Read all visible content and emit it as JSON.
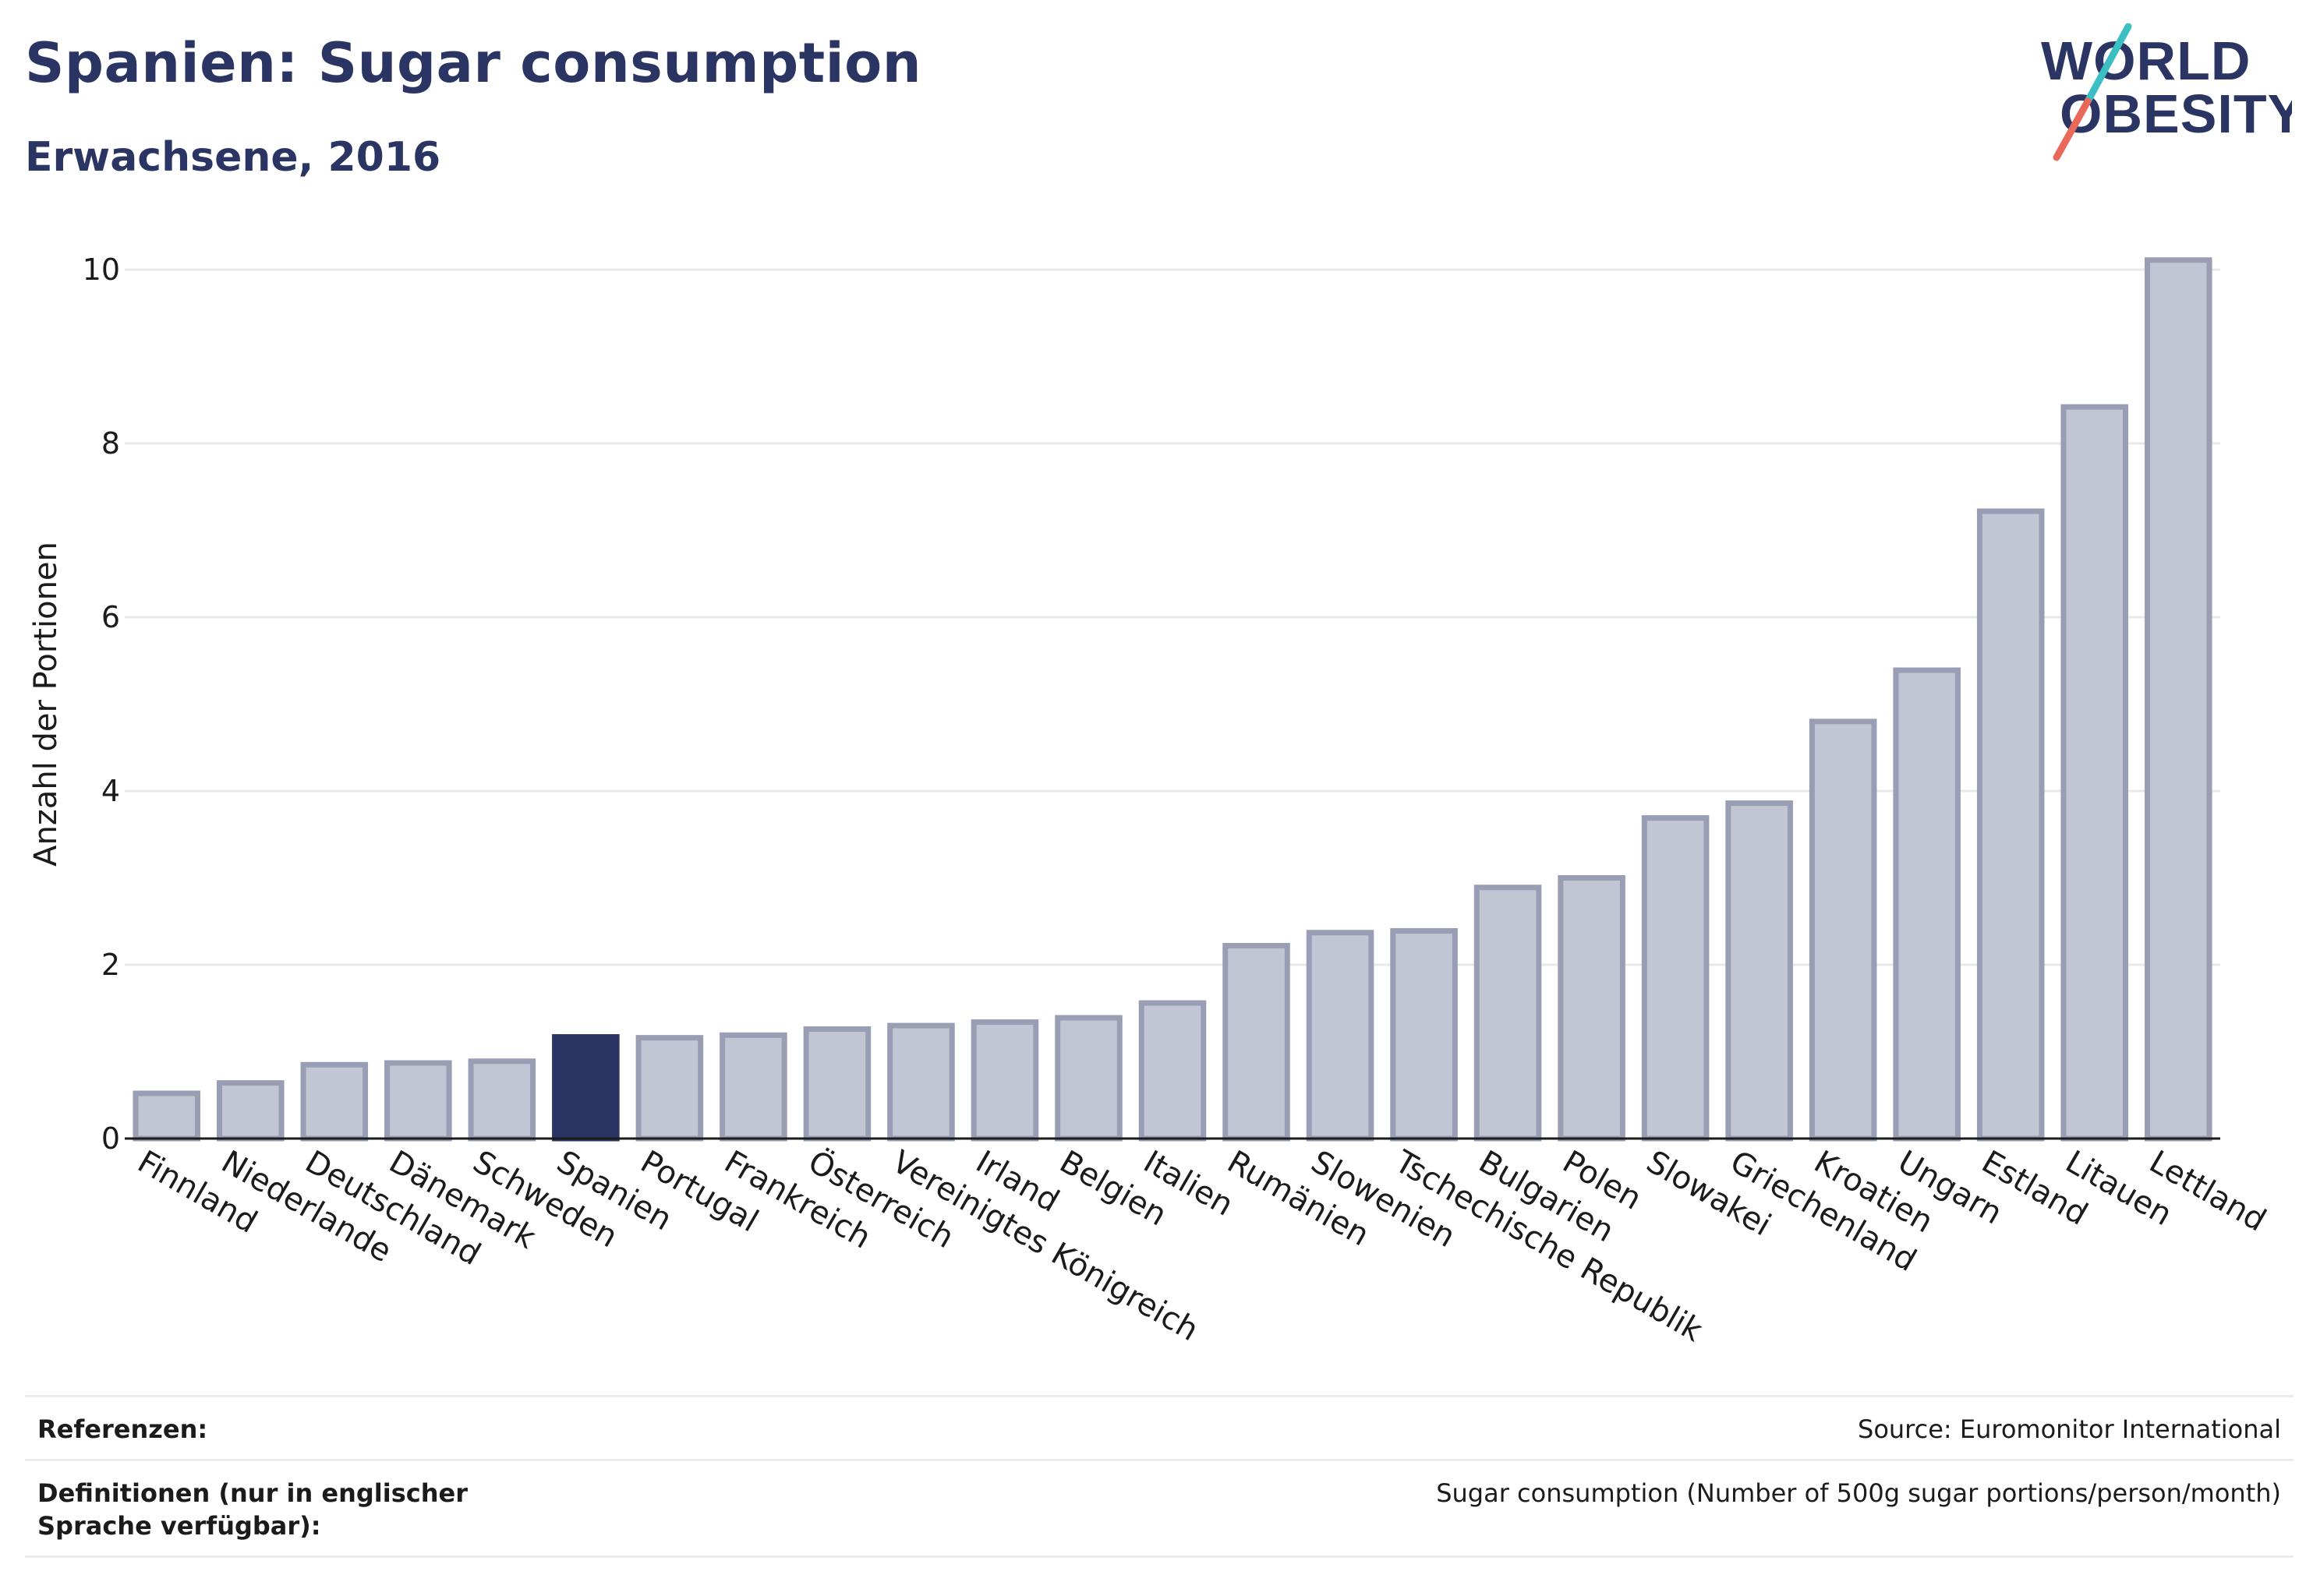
{
  "header": {
    "title": "Spanien: Sugar consumption",
    "subtitle": "Erwachsene, 2016"
  },
  "logo": {
    "line1": "WORLD",
    "line2": "OBESITY",
    "colors": {
      "text": "#2b3564",
      "slash_top": "#3bbfc2",
      "slash_bottom": "#e8685a"
    }
  },
  "chart_data": {
    "type": "bar",
    "ylabel": "Anzahl der Portionen",
    "xlabel": "",
    "ylim": [
      0,
      10.5
    ],
    "yticks": [
      0,
      2,
      4,
      6,
      8,
      10
    ],
    "grid": true,
    "highlight": "Spanien",
    "colors": {
      "bar": "#c2c5d3",
      "bar_edge": "#9a9eb5",
      "highlight": "#2b3564",
      "grid": "#e8e8e8"
    },
    "categories": [
      "Finnland",
      "Niederlande",
      "Deutschland",
      "Dänemark",
      "Schweden",
      "Spanien",
      "Portugal",
      "Frankreich",
      "Österreich",
      "Vereinigtes Königreich",
      "Irland",
      "Belgien",
      "Italien",
      "Rumänien",
      "Slowenien",
      "Tschechische Republik",
      "Bulgarien",
      "Polen",
      "Slowakei",
      "Griechenland",
      "Kroatien",
      "Ungarn",
      "Estland",
      "Litauen",
      "Lettland"
    ],
    "values": [
      0.52,
      0.64,
      0.85,
      0.87,
      0.89,
      1.17,
      1.16,
      1.19,
      1.26,
      1.3,
      1.34,
      1.39,
      1.56,
      2.22,
      2.37,
      2.39,
      2.89,
      3.0,
      3.69,
      3.86,
      4.8,
      5.39,
      7.22,
      8.42,
      10.11
    ]
  },
  "footer": {
    "references_label": "Referenzen:",
    "references_value": "Source: Euromonitor International",
    "definitions_label": "Definitionen (nur in englischer Sprache verfügbar):",
    "definitions_value": "Sugar consumption (Number of 500g sugar portions/person/month)"
  }
}
